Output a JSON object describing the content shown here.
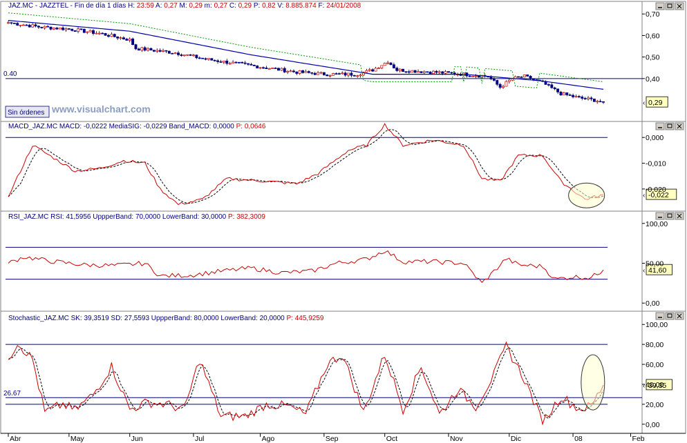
{
  "window": {
    "colors": {
      "bg": "#ffffff",
      "border": "#808080",
      "navy": "#000080",
      "red": "#cc0000",
      "green": "#008000",
      "blue": "#0000cc",
      "value_bg": "#ffffc0"
    },
    "panel_buttons": [
      "minimize-icon",
      "maximize-icon",
      "close-icon"
    ]
  },
  "price_panel": {
    "header": [
      {
        "t": "JAZ.MC - JAZZTEL - Fin de día 1 días",
        "c": "n"
      },
      {
        "t": "H:",
        "c": "n"
      },
      {
        "t": "23:59",
        "c": "r"
      },
      {
        "t": "A:",
        "c": "n"
      },
      {
        "t": "0,27",
        "c": "r"
      },
      {
        "t": "M:",
        "c": "n"
      },
      {
        "t": "0,29",
        "c": "r"
      },
      {
        "t": "m:",
        "c": "n"
      },
      {
        "t": "0,27",
        "c": "r"
      },
      {
        "t": "C:",
        "c": "n"
      },
      {
        "t": "0,29",
        "c": "r"
      },
      {
        "t": "P:",
        "c": "n"
      },
      {
        "t": "0,82",
        "c": "r"
      },
      {
        "t": "V:",
        "c": "n"
      },
      {
        "t": "8.885.874",
        "c": "r"
      },
      {
        "t": "F:",
        "c": "n"
      },
      {
        "t": "24/01/2008",
        "c": "r"
      }
    ],
    "y_ticks": [
      "0,70",
      "0,60",
      "0,50",
      "0,40"
    ],
    "y_tick_values": [
      0.7,
      0.6,
      0.5,
      0.4
    ],
    "line_label": "0.40",
    "value_box": "0,29",
    "button_label": "Sin órdenes",
    "watermark": "www.visualchart.com"
  },
  "macd_panel": {
    "header": [
      {
        "t": "MACD_JAZ.MC",
        "c": "n"
      },
      {
        "t": "MACD: -0,0222",
        "c": "n"
      },
      {
        "t": "MediaSIG: -0,0229",
        "c": "n"
      },
      {
        "t": "Band_MACD: 0,0000",
        "c": "n"
      },
      {
        "t": "P: 0,0646",
        "c": "r"
      }
    ],
    "y_ticks": [
      "0,000",
      "-0,010",
      "-0,020"
    ],
    "value_box": "-0,022"
  },
  "rsi_panel": {
    "header": [
      {
        "t": "RSI_JAZ.MC",
        "c": "n"
      },
      {
        "t": "RSI: 41,5956",
        "c": "n"
      },
      {
        "t": "UppperBand: 70,0000",
        "c": "n"
      },
      {
        "t": "LowerBand: 30,0000",
        "c": "n"
      },
      {
        "t": "P: 382,3009",
        "c": "r"
      }
    ],
    "y_ticks": [
      "100,00",
      "50,00",
      "0,00"
    ],
    "value_box": "41,60"
  },
  "stoch_panel": {
    "header": [
      {
        "t": "Stochastic_JAZ.MC",
        "c": "n"
      },
      {
        "t": "SK: 39,3519",
        "c": "n"
      },
      {
        "t": "SD: 27,5593",
        "c": "n"
      },
      {
        "t": "UppperBand: 80,0000",
        "c": "n"
      },
      {
        "t": "LowerBand: 20,0000",
        "c": "n"
      },
      {
        "t": "P: 445,9259",
        "c": "r"
      }
    ],
    "y_ticks": [
      "100,00",
      "80,00",
      "60,00",
      "40,00",
      "20,00",
      "0,00"
    ],
    "line_label": "26.67",
    "value_box": "39,35"
  },
  "chart_data": {
    "type": "line",
    "x_months": [
      "Abr",
      "May",
      "Jun",
      "Jul",
      "Ago",
      "Sep",
      "Oct",
      "Nov",
      "Dic",
      "08",
      "Feb"
    ],
    "price": {
      "ylim": [
        0.22,
        0.72
      ],
      "horizontal_line": 0.4,
      "close_knots": [
        [
          0,
          0.66
        ],
        [
          10,
          0.64
        ],
        [
          20,
          0.63
        ],
        [
          30,
          0.61
        ],
        [
          40,
          0.58
        ],
        [
          42,
          0.54
        ],
        [
          55,
          0.52
        ],
        [
          65,
          0.49
        ],
        [
          75,
          0.47
        ],
        [
          85,
          0.45
        ],
        [
          95,
          0.43
        ],
        [
          105,
          0.42
        ],
        [
          115,
          0.42
        ],
        [
          120,
          0.44
        ],
        [
          125,
          0.48
        ],
        [
          128,
          0.44
        ],
        [
          140,
          0.43
        ],
        [
          150,
          0.42
        ],
        [
          158,
          0.41
        ],
        [
          162,
          0.36
        ],
        [
          166,
          0.4
        ],
        [
          170,
          0.41
        ],
        [
          176,
          0.38
        ],
        [
          182,
          0.33
        ],
        [
          188,
          0.31
        ],
        [
          193,
          0.3
        ],
        [
          196,
          0.29
        ]
      ],
      "ma_knots": [
        [
          0,
          0.67
        ],
        [
          40,
          0.62
        ],
        [
          80,
          0.51
        ],
        [
          120,
          0.42
        ],
        [
          150,
          0.42
        ],
        [
          175,
          0.39
        ],
        [
          196,
          0.35
        ]
      ]
    },
    "macd": {
      "ylim": [
        -0.027,
        0.003
      ],
      "zero_line": 0,
      "knots": [
        [
          0,
          -0.023
        ],
        [
          8,
          -0.003
        ],
        [
          15,
          -0.008
        ],
        [
          22,
          -0.013
        ],
        [
          30,
          -0.012
        ],
        [
          38,
          -0.009
        ],
        [
          45,
          -0.01
        ],
        [
          50,
          -0.02
        ],
        [
          56,
          -0.026
        ],
        [
          64,
          -0.024
        ],
        [
          72,
          -0.016
        ],
        [
          85,
          -0.017
        ],
        [
          95,
          -0.018
        ],
        [
          102,
          -0.014
        ],
        [
          112,
          -0.005
        ],
        [
          118,
          -0.003
        ],
        [
          124,
          0.005
        ],
        [
          130,
          -0.003
        ],
        [
          140,
          -0.001
        ],
        [
          150,
          -0.003
        ],
        [
          156,
          -0.016
        ],
        [
          162,
          -0.017
        ],
        [
          168,
          -0.007
        ],
        [
          176,
          -0.007
        ],
        [
          182,
          -0.017
        ],
        [
          190,
          -0.024
        ],
        [
          196,
          -0.0222
        ]
      ],
      "signal_lag": 4
    },
    "rsi": {
      "ylim": [
        -5,
        105
      ],
      "upper_band": 70,
      "lower_band": 30,
      "knots": [
        [
          0,
          50
        ],
        [
          5,
          58
        ],
        [
          15,
          52
        ],
        [
          25,
          48
        ],
        [
          35,
          47
        ],
        [
          45,
          50
        ],
        [
          50,
          34
        ],
        [
          60,
          35
        ],
        [
          70,
          40
        ],
        [
          80,
          44
        ],
        [
          90,
          38
        ],
        [
          100,
          40
        ],
        [
          108,
          50
        ],
        [
          118,
          55
        ],
        [
          124,
          66
        ],
        [
          130,
          52
        ],
        [
          140,
          52
        ],
        [
          150,
          50
        ],
        [
          156,
          25
        ],
        [
          160,
          40
        ],
        [
          164,
          56
        ],
        [
          168,
          48
        ],
        [
          176,
          46
        ],
        [
          180,
          30
        ],
        [
          186,
          33
        ],
        [
          192,
          32
        ],
        [
          196,
          41.6
        ]
      ]
    },
    "stochastic": {
      "ylim": [
        -5,
        105
      ],
      "upper_band": 80,
      "lower_band": 20,
      "extra_line": 26.67,
      "knots": [
        [
          0,
          65
        ],
        [
          3,
          82
        ],
        [
          8,
          65
        ],
        [
          12,
          12
        ],
        [
          18,
          20
        ],
        [
          22,
          14
        ],
        [
          28,
          30
        ],
        [
          34,
          58
        ],
        [
          40,
          15
        ],
        [
          46,
          22
        ],
        [
          52,
          20
        ],
        [
          58,
          15
        ],
        [
          63,
          65
        ],
        [
          70,
          8
        ],
        [
          78,
          8
        ],
        [
          85,
          20
        ],
        [
          92,
          18
        ],
        [
          98,
          10
        ],
        [
          105,
          60
        ],
        [
          110,
          70
        ],
        [
          117,
          12
        ],
        [
          124,
          70
        ],
        [
          130,
          15
        ],
        [
          136,
          58
        ],
        [
          142,
          10
        ],
        [
          148,
          35
        ],
        [
          154,
          18
        ],
        [
          160,
          50
        ],
        [
          164,
          78
        ],
        [
          170,
          45
        ],
        [
          176,
          2
        ],
        [
          182,
          28
        ],
        [
          188,
          15
        ],
        [
          192,
          18
        ],
        [
          196,
          39.35
        ]
      ],
      "signal_lag": 2
    }
  }
}
